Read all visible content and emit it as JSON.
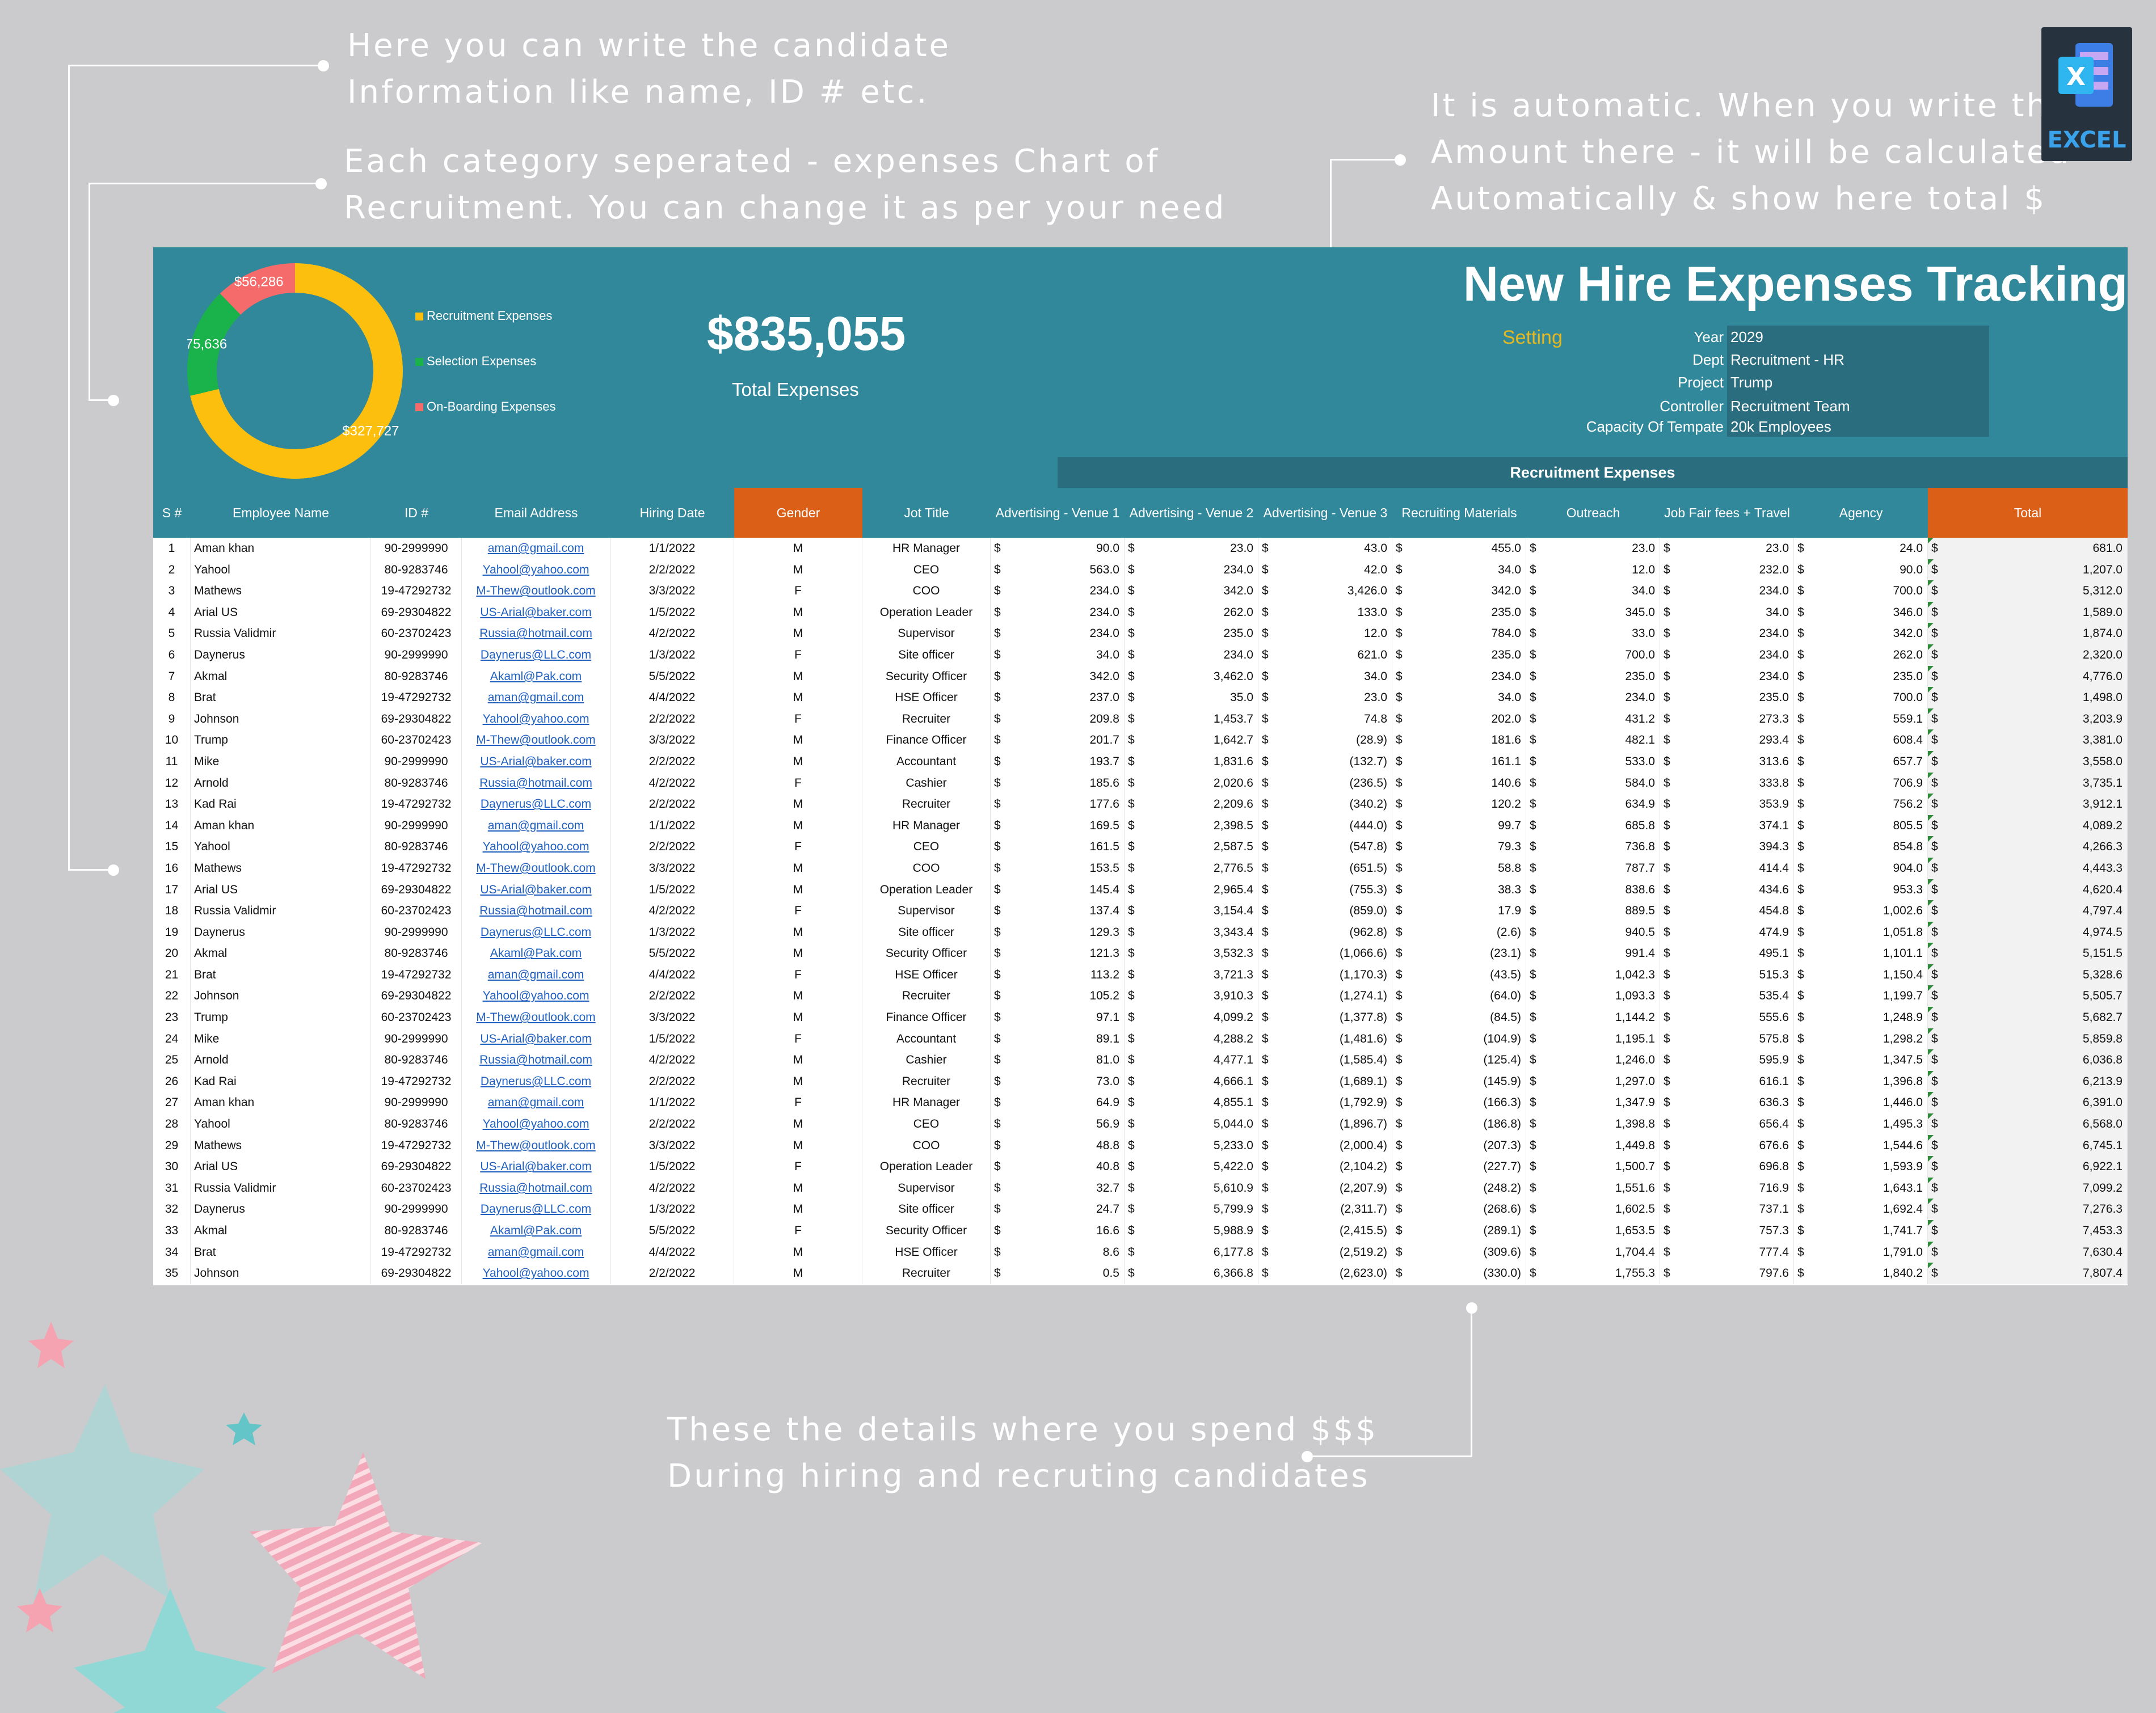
{
  "annotations": {
    "candidate_info": [
      "Here you can write the candidate",
      "Information like name, ID # etc."
    ],
    "category_chart": [
      "Each category seperated - expenses Chart of",
      "Recruitment. You can change it as per your need"
    ],
    "automatic": [
      "It is automatic. When you write the",
      "Amount there - it will be calculated",
      "Automatically & show here total $"
    ],
    "details": [
      "These the details where you spend $$$",
      "During hiring and recruting candidates"
    ]
  },
  "excel_badge": {
    "label": "EXCEL",
    "letter": "X"
  },
  "dashboard": {
    "title": "New Hire Expenses Tracking",
    "total_value": "$835,055",
    "total_label": "Total Expenses",
    "setting_label": "Setting",
    "info": [
      {
        "label": "Year",
        "value": "2029"
      },
      {
        "label": "Dept",
        "value": "Recruitment - HR"
      },
      {
        "label": "Project",
        "value": "Trump"
      },
      {
        "label": "Controller",
        "value": "Recruitment Team"
      },
      {
        "label": "Capacity Of Tempate",
        "value": "20k Employees"
      }
    ],
    "group_header": "Recruitment Expenses"
  },
  "chart_data": {
    "type": "pie",
    "categories": [
      "Recruitment Expenses",
      "Selection Expenses",
      "On-Boarding Expenses"
    ],
    "values": [
      327727,
      75636,
      56286
    ],
    "labels": [
      "$327,727",
      "$75,636",
      "$56,286"
    ],
    "colors": [
      "#fdbf0e",
      "#19b24b",
      "#f56b6b"
    ],
    "legend": "right",
    "donut": true
  },
  "colors": {
    "banner": "#31889b",
    "dark": "#2a6d7f",
    "orange": "#dc5f17"
  },
  "table": {
    "headers": [
      "S #",
      "Employee Name",
      "ID #",
      "Email Address",
      "Hiring Date",
      "Gender",
      "Jot Title",
      "Advertising - Venue 1",
      "Advertising - Venue 2",
      "Advertising - Venue 3",
      "Recruiting Materials",
      "Outreach",
      "Job Fair fees + Travel",
      "Agency",
      "Total"
    ],
    "currency": "$",
    "rows": [
      [
        "1",
        "Aman khan",
        "90-2999990",
        "aman@gmail.com",
        "1/1/2022",
        "M",
        "HR Manager",
        "90.0",
        "23.0",
        "43.0",
        "455.0",
        "23.0",
        "23.0",
        "24.0",
        "681.0"
      ],
      [
        "2",
        "Yahool",
        "80-9283746",
        "Yahool@yahoo.com",
        "2/2/2022",
        "M",
        "CEO",
        "563.0",
        "234.0",
        "42.0",
        "34.0",
        "12.0",
        "232.0",
        "90.0",
        "1,207.0"
      ],
      [
        "3",
        "Mathews",
        "19-47292732",
        "M-Thew@outlook.com",
        "3/3/2022",
        "F",
        "COO",
        "234.0",
        "342.0",
        "3,426.0",
        "342.0",
        "34.0",
        "234.0",
        "700.0",
        "5,312.0"
      ],
      [
        "4",
        "Arial US",
        "69-29304822",
        "US-Arial@baker.com",
        "1/5/2022",
        "M",
        "Operation Leader",
        "234.0",
        "262.0",
        "133.0",
        "235.0",
        "345.0",
        "34.0",
        "346.0",
        "1,589.0"
      ],
      [
        "5",
        "Russia Validmir",
        "60-23702423",
        "Russia@hotmail.com",
        "4/2/2022",
        "M",
        "Supervisor",
        "234.0",
        "235.0",
        "12.0",
        "784.0",
        "33.0",
        "234.0",
        "342.0",
        "1,874.0"
      ],
      [
        "6",
        "Daynerus",
        "90-2999990",
        "Daynerus@LLC.com",
        "1/3/2022",
        "F",
        "Site officer",
        "34.0",
        "234.0",
        "621.0",
        "235.0",
        "700.0",
        "234.0",
        "262.0",
        "2,320.0"
      ],
      [
        "7",
        "Akmal",
        "80-9283746",
        "Akaml@Pak.com",
        "5/5/2022",
        "M",
        "Security Officer",
        "342.0",
        "3,462.0",
        "34.0",
        "234.0",
        "235.0",
        "234.0",
        "235.0",
        "4,776.0"
      ],
      [
        "8",
        "Brat",
        "19-47292732",
        "aman@gmail.com",
        "4/4/2022",
        "M",
        "HSE Officer",
        "237.0",
        "35.0",
        "23.0",
        "34.0",
        "234.0",
        "235.0",
        "700.0",
        "1,498.0"
      ],
      [
        "9",
        "Johnson",
        "69-29304822",
        "Yahool@yahoo.com",
        "2/2/2022",
        "F",
        "Recruiter",
        "209.8",
        "1,453.7",
        "74.8",
        "202.0",
        "431.2",
        "273.3",
        "559.1",
        "3,203.9"
      ],
      [
        "10",
        "Trump",
        "60-23702423",
        "M-Thew@outlook.com",
        "3/3/2022",
        "M",
        "Finance Officer",
        "201.7",
        "1,642.7",
        "(28.9)",
        "181.6",
        "482.1",
        "293.4",
        "608.4",
        "3,381.0"
      ],
      [
        "11",
        "Mike",
        "90-2999990",
        "US-Arial@baker.com",
        "2/2/2022",
        "M",
        "Accountant",
        "193.7",
        "1,831.6",
        "(132.7)",
        "161.1",
        "533.0",
        "313.6",
        "657.7",
        "3,558.0"
      ],
      [
        "12",
        "Arnold",
        "80-9283746",
        "Russia@hotmail.com",
        "4/2/2022",
        "F",
        "Cashier",
        "185.6",
        "2,020.6",
        "(236.5)",
        "140.6",
        "584.0",
        "333.8",
        "706.9",
        "3,735.1"
      ],
      [
        "13",
        "Kad Rai",
        "19-47292732",
        "Daynerus@LLC.com",
        "2/2/2022",
        "M",
        "Recruiter",
        "177.6",
        "2,209.6",
        "(340.2)",
        "120.2",
        "634.9",
        "353.9",
        "756.2",
        "3,912.1"
      ],
      [
        "14",
        "Aman khan",
        "90-2999990",
        "aman@gmail.com",
        "1/1/2022",
        "M",
        "HR Manager",
        "169.5",
        "2,398.5",
        "(444.0)",
        "99.7",
        "685.8",
        "374.1",
        "805.5",
        "4,089.2"
      ],
      [
        "15",
        "Yahool",
        "80-9283746",
        "Yahool@yahoo.com",
        "2/2/2022",
        "F",
        "CEO",
        "161.5",
        "2,587.5",
        "(547.8)",
        "79.3",
        "736.8",
        "394.3",
        "854.8",
        "4,266.3"
      ],
      [
        "16",
        "Mathews",
        "19-47292732",
        "M-Thew@outlook.com",
        "3/3/2022",
        "M",
        "COO",
        "153.5",
        "2,776.5",
        "(651.5)",
        "58.8",
        "787.7",
        "414.4",
        "904.0",
        "4,443.3"
      ],
      [
        "17",
        "Arial US",
        "69-29304822",
        "US-Arial@baker.com",
        "1/5/2022",
        "M",
        "Operation Leader",
        "145.4",
        "2,965.4",
        "(755.3)",
        "38.3",
        "838.6",
        "434.6",
        "953.3",
        "4,620.4"
      ],
      [
        "18",
        "Russia Validmir",
        "60-23702423",
        "Russia@hotmail.com",
        "4/2/2022",
        "F",
        "Supervisor",
        "137.4",
        "3,154.4",
        "(859.0)",
        "17.9",
        "889.5",
        "454.8",
        "1,002.6",
        "4,797.4"
      ],
      [
        "19",
        "Daynerus",
        "90-2999990",
        "Daynerus@LLC.com",
        "1/3/2022",
        "M",
        "Site officer",
        "129.3",
        "3,343.4",
        "(962.8)",
        "(2.6)",
        "940.5",
        "474.9",
        "1,051.8",
        "4,974.5"
      ],
      [
        "20",
        "Akmal",
        "80-9283746",
        "Akaml@Pak.com",
        "5/5/2022",
        "M",
        "Security Officer",
        "121.3",
        "3,532.3",
        "(1,066.6)",
        "(23.1)",
        "991.4",
        "495.1",
        "1,101.1",
        "5,151.5"
      ],
      [
        "21",
        "Brat",
        "19-47292732",
        "aman@gmail.com",
        "4/4/2022",
        "F",
        "HSE Officer",
        "113.2",
        "3,721.3",
        "(1,170.3)",
        "(43.5)",
        "1,042.3",
        "515.3",
        "1,150.4",
        "5,328.6"
      ],
      [
        "22",
        "Johnson",
        "69-29304822",
        "Yahool@yahoo.com",
        "2/2/2022",
        "M",
        "Recruiter",
        "105.2",
        "3,910.3",
        "(1,274.1)",
        "(64.0)",
        "1,093.3",
        "535.4",
        "1,199.7",
        "5,505.7"
      ],
      [
        "23",
        "Trump",
        "60-23702423",
        "M-Thew@outlook.com",
        "3/3/2022",
        "M",
        "Finance Officer",
        "97.1",
        "4,099.2",
        "(1,377.8)",
        "(84.5)",
        "1,144.2",
        "555.6",
        "1,248.9",
        "5,682.7"
      ],
      [
        "24",
        "Mike",
        "90-2999990",
        "US-Arial@baker.com",
        "1/5/2022",
        "F",
        "Accountant",
        "89.1",
        "4,288.2",
        "(1,481.6)",
        "(104.9)",
        "1,195.1",
        "575.8",
        "1,298.2",
        "5,859.8"
      ],
      [
        "25",
        "Arnold",
        "80-9283746",
        "Russia@hotmail.com",
        "4/2/2022",
        "M",
        "Cashier",
        "81.0",
        "4,477.1",
        "(1,585.4)",
        "(125.4)",
        "1,246.0",
        "595.9",
        "1,347.5",
        "6,036.8"
      ],
      [
        "26",
        "Kad Rai",
        "19-47292732",
        "Daynerus@LLC.com",
        "2/2/2022",
        "M",
        "Recruiter",
        "73.0",
        "4,666.1",
        "(1,689.1)",
        "(145.9)",
        "1,297.0",
        "616.1",
        "1,396.8",
        "6,213.9"
      ],
      [
        "27",
        "Aman khan",
        "90-2999990",
        "aman@gmail.com",
        "1/1/2022",
        "F",
        "HR Manager",
        "64.9",
        "4,855.1",
        "(1,792.9)",
        "(166.3)",
        "1,347.9",
        "636.3",
        "1,446.0",
        "6,391.0"
      ],
      [
        "28",
        "Yahool",
        "80-9283746",
        "Yahool@yahoo.com",
        "2/2/2022",
        "M",
        "CEO",
        "56.9",
        "5,044.0",
        "(1,896.7)",
        "(186.8)",
        "1,398.8",
        "656.4",
        "1,495.3",
        "6,568.0"
      ],
      [
        "29",
        "Mathews",
        "19-47292732",
        "M-Thew@outlook.com",
        "3/3/2022",
        "M",
        "COO",
        "48.8",
        "5,233.0",
        "(2,000.4)",
        "(207.3)",
        "1,449.8",
        "676.6",
        "1,544.6",
        "6,745.1"
      ],
      [
        "30",
        "Arial US",
        "69-29304822",
        "US-Arial@baker.com",
        "1/5/2022",
        "F",
        "Operation Leader",
        "40.8",
        "5,422.0",
        "(2,104.2)",
        "(227.7)",
        "1,500.7",
        "696.8",
        "1,593.9",
        "6,922.1"
      ],
      [
        "31",
        "Russia Validmir",
        "60-23702423",
        "Russia@hotmail.com",
        "4/2/2022",
        "M",
        "Supervisor",
        "32.7",
        "5,610.9",
        "(2,207.9)",
        "(248.2)",
        "1,551.6",
        "716.9",
        "1,643.1",
        "7,099.2"
      ],
      [
        "32",
        "Daynerus",
        "90-2999990",
        "Daynerus@LLC.com",
        "1/3/2022",
        "M",
        "Site officer",
        "24.7",
        "5,799.9",
        "(2,311.7)",
        "(268.6)",
        "1,602.5",
        "737.1",
        "1,692.4",
        "7,276.3"
      ],
      [
        "33",
        "Akmal",
        "80-9283746",
        "Akaml@Pak.com",
        "5/5/2022",
        "F",
        "Security Officer",
        "16.6",
        "5,988.9",
        "(2,415.5)",
        "(289.1)",
        "1,653.5",
        "757.3",
        "1,741.7",
        "7,453.3"
      ],
      [
        "34",
        "Brat",
        "19-47292732",
        "aman@gmail.com",
        "4/4/2022",
        "M",
        "HSE Officer",
        "8.6",
        "6,177.8",
        "(2,519.2)",
        "(309.6)",
        "1,704.4",
        "777.4",
        "1,791.0",
        "7,630.4"
      ],
      [
        "35",
        "Johnson",
        "69-29304822",
        "Yahool@yahoo.com",
        "2/2/2022",
        "M",
        "Recruiter",
        "0.5",
        "6,366.8",
        "(2,623.0)",
        "(330.0)",
        "1,755.3",
        "797.6",
        "1,840.2",
        "7,807.4"
      ]
    ]
  }
}
